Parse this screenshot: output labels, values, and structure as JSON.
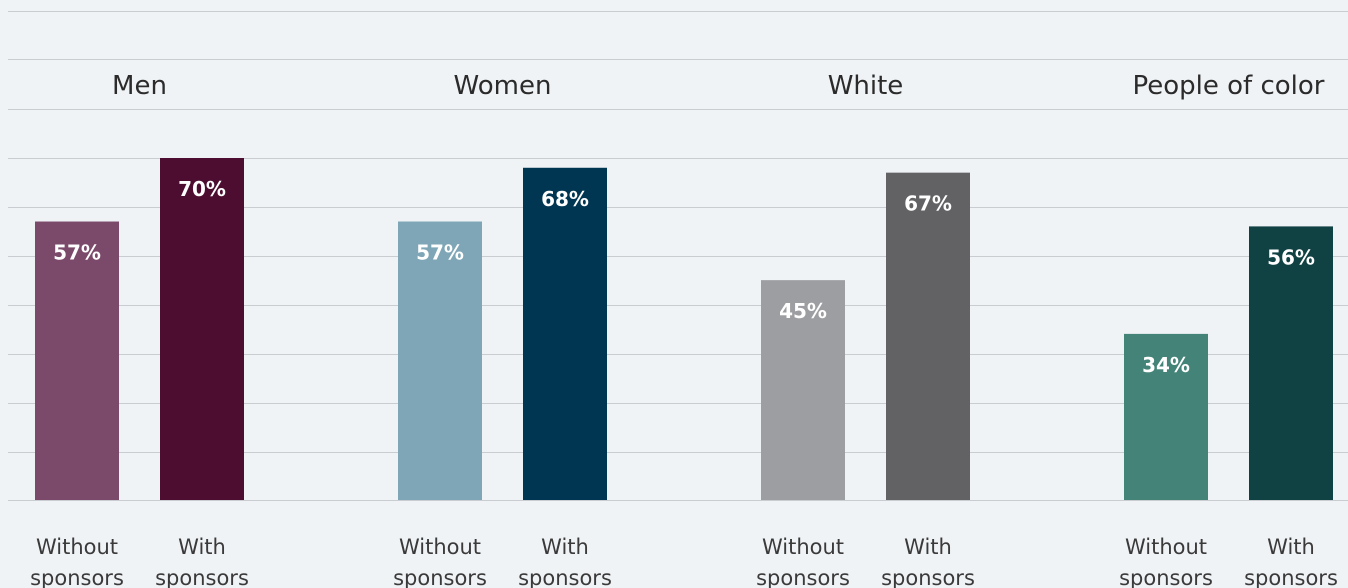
{
  "chart_data": {
    "type": "bar",
    "value_suffix": "%",
    "ylim": [
      0,
      70
    ],
    "grid": true,
    "groups": [
      {
        "title": "Men",
        "bars": [
          {
            "label": "Without sponsors",
            "value": 57,
            "color": "#7b4a6a"
          },
          {
            "label": "With sponsors",
            "value": 70,
            "color": "#4d0d31"
          }
        ]
      },
      {
        "title": "Women",
        "bars": [
          {
            "label": "Without sponsors",
            "value": 57,
            "color": "#7ea6b6"
          },
          {
            "label": "With sponsors",
            "value": 68,
            "color": "#003651"
          }
        ]
      },
      {
        "title": "White",
        "bars": [
          {
            "label": "Without sponsors",
            "value": 45,
            "color": "#9d9ea1"
          },
          {
            "label": "With sponsors",
            "value": 67,
            "color": "#626264"
          }
        ]
      },
      {
        "title": "People of color",
        "bars": [
          {
            "label": "Without sponsors",
            "value": 34,
            "color": "#438378"
          },
          {
            "label": "With sponsors",
            "value": 56,
            "color": "#104143"
          }
        ]
      }
    ]
  }
}
